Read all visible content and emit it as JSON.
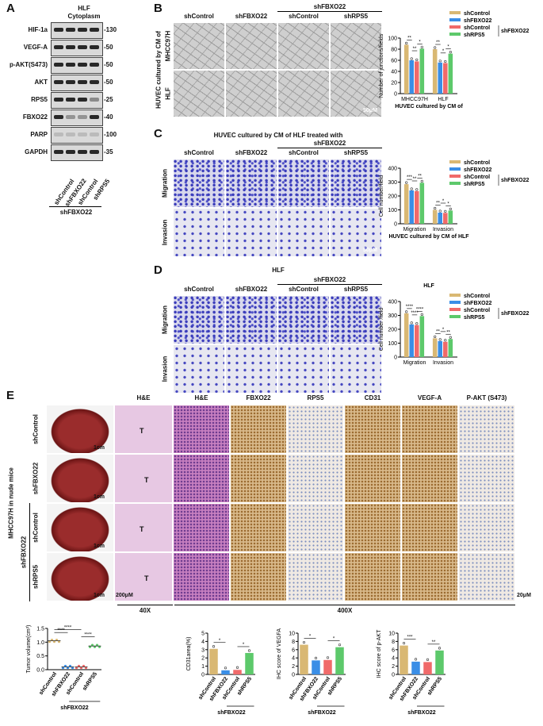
{
  "panels": {
    "A": {
      "letter": "A",
      "title": "HLF",
      "subtitle": "Cytoplasm",
      "blots": [
        {
          "name": "HIF-1a",
          "kda": "-130"
        },
        {
          "name": "VEGF-A",
          "kda": "-50"
        },
        {
          "name": "p-AKT(S473)",
          "kda": "-50"
        },
        {
          "name": "AKT",
          "kda": "-50"
        },
        {
          "name": "RPS5",
          "kda": "-25"
        },
        {
          "name": "FBXO22",
          "kda": "-40"
        },
        {
          "name": "PARP",
          "kda": "-100"
        },
        {
          "name": "GAPDH",
          "kda": "-35"
        }
      ],
      "lanes": [
        "shControl",
        "shFBXO22",
        "shControl",
        "shRPS5"
      ],
      "group_label": "shFBXO22"
    },
    "B": {
      "letter": "B",
      "col_heads": [
        "shControl",
        "shFBXO22",
        "shControl",
        "shRPS5"
      ],
      "group_label": "shFBXO22",
      "side_label": "HUVEC cultured by CM of",
      "row_labels": [
        "MHCC97H",
        "HLF"
      ],
      "scale_bar": "50μM"
    },
    "C": {
      "letter": "C",
      "title": "HUVEC cultured by CM of HLF treated with",
      "col_heads": [
        "shControl",
        "shFBXO22",
        "shControl",
        "shRPS5"
      ],
      "group_label": "shFBXO22",
      "row_labels": [
        "Migration",
        "Invasion"
      ],
      "scale_bar": "50μM"
    },
    "D": {
      "letter": "D",
      "title": "HLF",
      "col_heads": [
        "shControl",
        "shFBXO22",
        "shControl",
        "shRPS5"
      ],
      "group_label": "shFBXO22",
      "row_labels": [
        "Migration",
        "Invasion"
      ]
    },
    "E": {
      "letter": "E",
      "side_label": "MHCC97H in nude mice",
      "row_labels": [
        "shControl",
        "shFBXO22",
        "shControl",
        "shRPS5"
      ],
      "group_label": "shFBXO22",
      "col_heads": [
        "H&E",
        "H&E",
        "FBXO22",
        "RPS5",
        "CD31",
        "VEGF-A",
        "P-AKT (S473)"
      ],
      "scale_1cm": "1cm",
      "scale_200": "200μM",
      "scale_20": "20μM",
      "tumor_mark": "T",
      "mag_40": "40X",
      "mag_400": "400X"
    }
  },
  "legend": {
    "items": [
      "shControl",
      "shFBXO22",
      "shControl",
      "shRPS5"
    ],
    "group": "shFBXO22"
  },
  "colors": {
    "shControl": "#d9b873",
    "shFBXO22": "#3a8ee6",
    "shControl2": "#f06a6a",
    "shRPS5": "#5dc96b"
  },
  "chart_data": [
    {
      "type": "bar",
      "id": "B",
      "ylabel": "Number of junctions/fields",
      "xlabel": "HUVEC cultured by CM of",
      "categories": [
        "MHCC97H",
        "HLF"
      ],
      "ylim": [
        0,
        100
      ],
      "yticks": [
        "0",
        "20",
        "40",
        "60",
        "80",
        "100"
      ],
      "series": [
        {
          "name": "shControl",
          "values": [
            88,
            80
          ]
        },
        {
          "name": "shFBXO22",
          "values": [
            60,
            56
          ]
        },
        {
          "name": "shControl",
          "values": [
            58,
            55
          ]
        },
        {
          "name": "shRPS5",
          "values": [
            81,
            72
          ]
        }
      ],
      "sig": [
        {
          "group": 0,
          "pairs": [
            [
              0,
              1,
              "**"
            ],
            [
              1,
              2,
              "**"
            ],
            [
              2,
              3,
              "*"
            ]
          ]
        },
        {
          "group": 1,
          "pairs": [
            [
              0,
              1,
              "**"
            ],
            [
              1,
              2,
              "*"
            ],
            [
              2,
              3,
              "*"
            ]
          ]
        }
      ]
    },
    {
      "type": "bar",
      "id": "C",
      "ylabel": "Cell number/field",
      "xlabel": "HUVEC cultured by CM of HLF",
      "categories": [
        "Migration",
        "Invasion"
      ],
      "ylim": [
        0,
        400
      ],
      "yticks": [
        "0",
        "100",
        "200",
        "300",
        "400"
      ],
      "series": [
        {
          "name": "shControl",
          "values": [
            285,
            100
          ]
        },
        {
          "name": "shFBXO22",
          "values": [
            240,
            80
          ]
        },
        {
          "name": "shControl",
          "values": [
            235,
            78
          ]
        },
        {
          "name": "shRPS5",
          "values": [
            295,
            95
          ]
        }
      ],
      "sig": [
        {
          "group": 0,
          "pairs": [
            [
              0,
              1,
              "***"
            ],
            [
              1,
              2,
              "**"
            ],
            [
              2,
              3,
              "**"
            ]
          ]
        },
        {
          "group": 1,
          "pairs": [
            [
              0,
              1,
              "**"
            ],
            [
              1,
              2,
              "*"
            ],
            [
              2,
              3,
              "*"
            ]
          ]
        }
      ]
    },
    {
      "type": "bar",
      "id": "D",
      "title": "HLF",
      "ylabel": "Cell number /field",
      "categories": [
        "Migration",
        "Invasion"
      ],
      "ylim": [
        0,
        400
      ],
      "yticks": [
        "0",
        "100",
        "200",
        "300",
        "400"
      ],
      "series": [
        {
          "name": "shControl",
          "values": [
            315,
            135
          ]
        },
        {
          "name": "shFBXO22",
          "values": [
            235,
            115
          ]
        },
        {
          "name": "shControl",
          "values": [
            230,
            110
          ]
        },
        {
          "name": "shRPS5",
          "values": [
            295,
            130
          ]
        }
      ],
      "sig": [
        {
          "group": 0,
          "pairs": [
            [
              0,
              1,
              "****"
            ],
            [
              1,
              2,
              "****"
            ],
            [
              2,
              3,
              "****"
            ]
          ]
        },
        {
          "group": 1,
          "pairs": [
            [
              0,
              1,
              "**"
            ],
            [
              1,
              2,
              "*"
            ],
            [
              2,
              3,
              "**"
            ]
          ]
        }
      ]
    },
    {
      "type": "scatter",
      "id": "E1",
      "ylabel": "Tumor volume(cm³)",
      "categories": [
        "shControl",
        "shFBXO22",
        "shControl",
        "shRPS5"
      ],
      "group_label": "shFBXO22",
      "ylim": [
        0,
        1.5
      ],
      "yticks": [
        "0.0",
        "0.5",
        "1.0",
        "1.5"
      ],
      "means": [
        1.05,
        0.1,
        0.1,
        0.86
      ],
      "sig": [
        "****",
        "****",
        "****"
      ]
    },
    {
      "type": "bar",
      "id": "E2",
      "ylabel": "CD31area(%)",
      "categories": [
        "shControl",
        "shFBXO22",
        "shControl",
        "shRPS5"
      ],
      "group_label": "shFBXO22",
      "ylim": [
        0,
        5
      ],
      "yticks": [
        "0",
        "1",
        "2",
        "3",
        "4",
        "5"
      ],
      "values": [
        3.1,
        0.5,
        0.55,
        2.6
      ],
      "sig": [
        "*",
        "*"
      ]
    },
    {
      "type": "bar",
      "id": "E3",
      "ylabel": "IHC score of VEGFA",
      "categories": [
        "shControl",
        "shFBXO22",
        "shControl",
        "shRPS5"
      ],
      "group_label": "shFBXO22",
      "ylim": [
        0,
        10
      ],
      "yticks": [
        "0",
        "2",
        "4",
        "6",
        "8",
        "10"
      ],
      "values": [
        7.2,
        3.4,
        3.5,
        6.6
      ],
      "sig": [
        "*",
        "*"
      ]
    },
    {
      "type": "bar",
      "id": "E4",
      "ylabel": "IHC score of p-AKT",
      "categories": [
        "shControl",
        "shFBXO22",
        "shControl",
        "shRPS5"
      ],
      "group_label": "shFBXO22",
      "ylim": [
        0,
        10
      ],
      "yticks": [
        "0",
        "2",
        "4",
        "6",
        "8",
        "10"
      ],
      "values": [
        7.0,
        3.1,
        3.0,
        5.8
      ],
      "sig": [
        "***",
        "**"
      ]
    }
  ]
}
